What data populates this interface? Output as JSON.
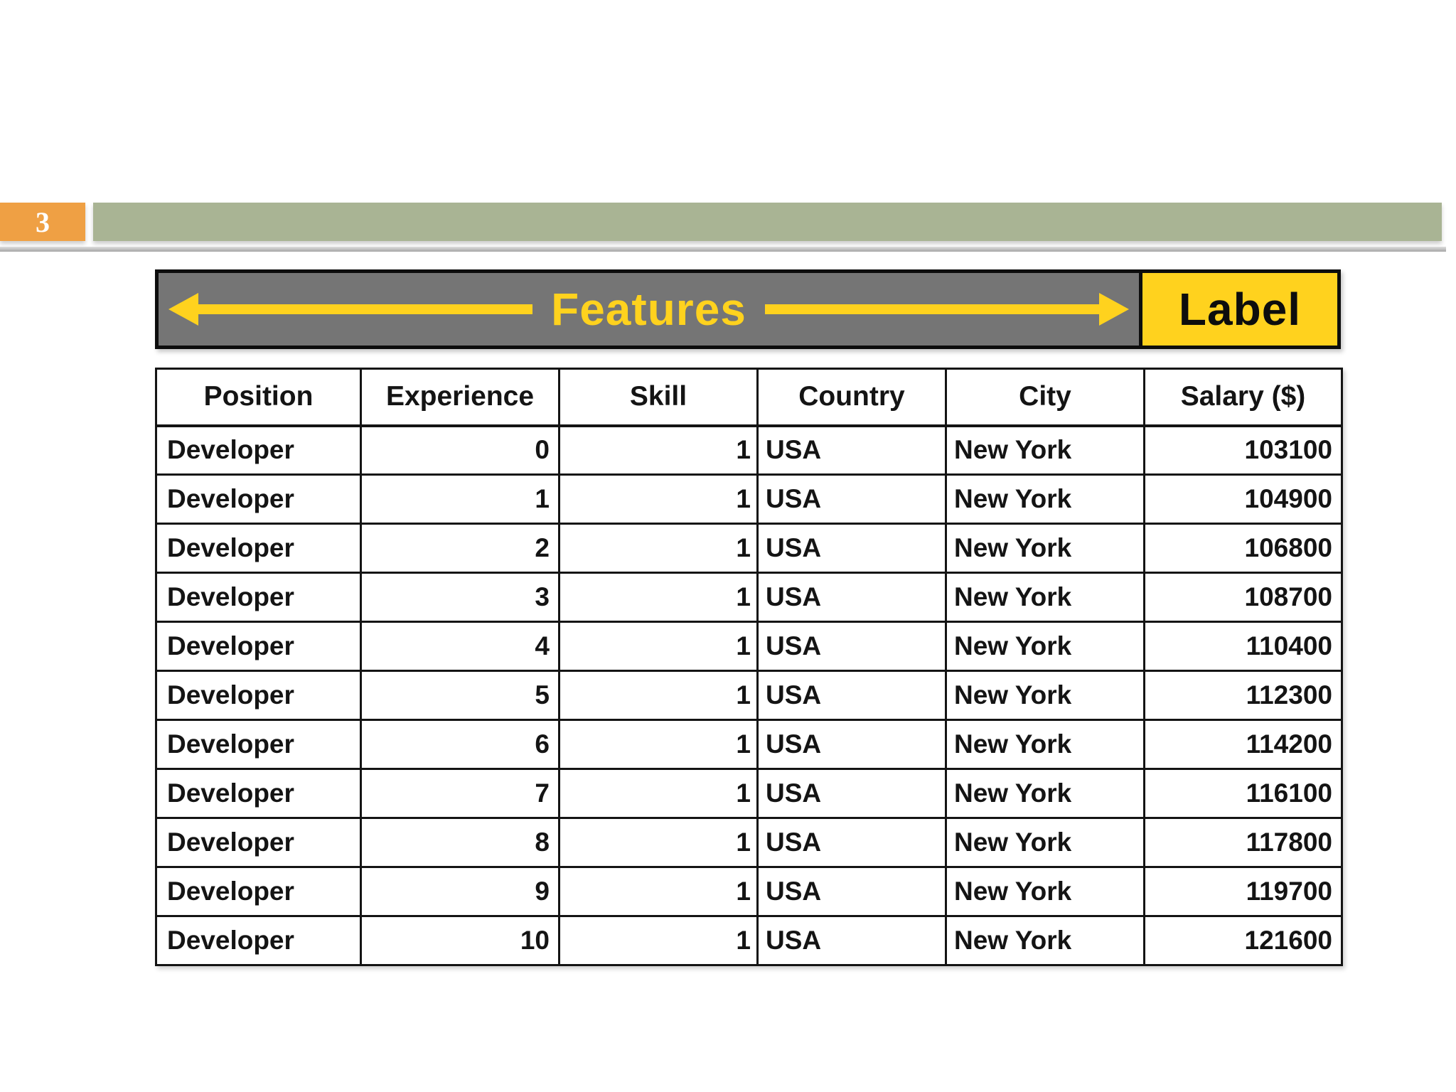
{
  "slide": {
    "page_number": "3"
  },
  "banner": {
    "features": "Features",
    "label": "Label"
  },
  "table": {
    "headers": [
      "Position",
      "Experience",
      "Skill",
      "Country",
      "City",
      "Salary ($)"
    ],
    "rows": [
      [
        "Developer",
        0,
        1,
        "USA",
        "New York",
        103100
      ],
      [
        "Developer",
        1,
        1,
        "USA",
        "New York",
        104900
      ],
      [
        "Developer",
        2,
        1,
        "USA",
        "New York",
        106800
      ],
      [
        "Developer",
        3,
        1,
        "USA",
        "New York",
        108700
      ],
      [
        "Developer",
        4,
        1,
        "USA",
        "New York",
        110400
      ],
      [
        "Developer",
        5,
        1,
        "USA",
        "New York",
        112300
      ],
      [
        "Developer",
        6,
        1,
        "USA",
        "New York",
        114200
      ],
      [
        "Developer",
        7,
        1,
        "USA",
        "New York",
        116100
      ],
      [
        "Developer",
        8,
        1,
        "USA",
        "New York",
        117800
      ],
      [
        "Developer",
        9,
        1,
        "USA",
        "New York",
        119700
      ],
      [
        "Developer",
        10,
        1,
        "USA",
        "New York",
        121600
      ]
    ]
  },
  "colors": {
    "accent_orange": "#EFA044",
    "accent_green": "#A9B494",
    "banner_gray": "#757575",
    "accent_yellow": "#FFD21E",
    "border_black": "#0D0D0D"
  }
}
